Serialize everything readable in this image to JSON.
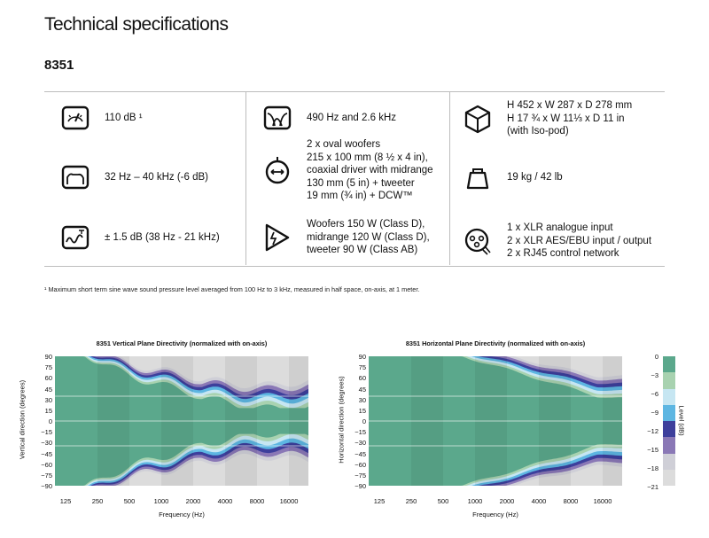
{
  "header": {
    "title": "Technical specifications",
    "model": "8351"
  },
  "specs": [
    {
      "icon": "meter-icon",
      "text": "110 dB ¹"
    },
    {
      "icon": "frequency-range-icon",
      "text": "32 Hz – 40 kHz (-6 dB)"
    },
    {
      "icon": "accuracy-wave-icon",
      "text": "± 1.5 dB (38 Hz - 21 kHz)"
    },
    {
      "icon": "crossover-icon",
      "text": "490 Hz and 2.6 kHz"
    },
    {
      "icon": "driver-icon",
      "text": "2 x oval woofers\n215 x 100 mm (8 ½ x 4 in),\ncoaxial driver with midrange\n130 mm (5 in) + tweeter\n19 mm (¾ in) + DCW™"
    },
    {
      "icon": "amplifier-icon",
      "text": "Woofers 150 W (Class D),\nmidrange 120 W (Class D),\ntweeter 90 W (Class AB)"
    },
    {
      "icon": "dimensions-cube-icon",
      "text": "H 452 x W 287 x D 278 mm\nH 17 ¾ x W 11⅓ x D 11 in\n(with Iso-pod)"
    },
    {
      "icon": "weight-icon",
      "text": "19 kg / 42 lb"
    },
    {
      "icon": "connector-icon",
      "text": "1 x XLR analogue input\n2 x XLR AES/EBU input / output\n2 x RJ45 control network"
    }
  ],
  "footnote": "¹ Maximum short term sine wave sound pressure level averaged from 100 Hz to 3 kHz, measured in half space, on-axis, at 1 meter.",
  "chart_data": [
    {
      "type": "heatmap",
      "title": "8351 Vertical Plane Directivity (normalized with on-axis)",
      "xlabel": "Frequency (Hz)",
      "ylabel": "Vertical direction (degrees)",
      "x_ticks": [
        "125",
        "250",
        "500",
        "1000",
        "2000",
        "4000",
        "8000",
        "16000"
      ],
      "y_ticks": [
        "90",
        "75",
        "60",
        "45",
        "30",
        "15",
        "0",
        "−15",
        "−30",
        "−45",
        "−60",
        "−75",
        "−90"
      ],
      "ylim": [
        -90,
        90
      ]
    },
    {
      "type": "heatmap",
      "title": "8351 Horizontal Plane Directivity (normalized with on-axis)",
      "xlabel": "Frequency (Hz)",
      "ylabel": "Horizontal direction (degrees)",
      "x_ticks": [
        "125",
        "250",
        "500",
        "1000",
        "2000",
        "4000",
        "8000",
        "16000"
      ],
      "y_ticks": [
        "90",
        "75",
        "60",
        "45",
        "30",
        "15",
        "0",
        "−15",
        "−30",
        "−45",
        "−60",
        "−75",
        "−90"
      ],
      "ylim": [
        -90,
        90
      ]
    }
  ],
  "legend": {
    "label": "Level (dB)",
    "ticks": [
      "0",
      "−3",
      "−6",
      "−9",
      "−12",
      "−15",
      "−18",
      "−21"
    ],
    "colors": [
      "#5ba88c",
      "#a8d2b0",
      "#c6e6f2",
      "#5db6e2",
      "#3d3f9c",
      "#8a78b6",
      "#cfcfd7",
      "#dcdcdc"
    ]
  }
}
